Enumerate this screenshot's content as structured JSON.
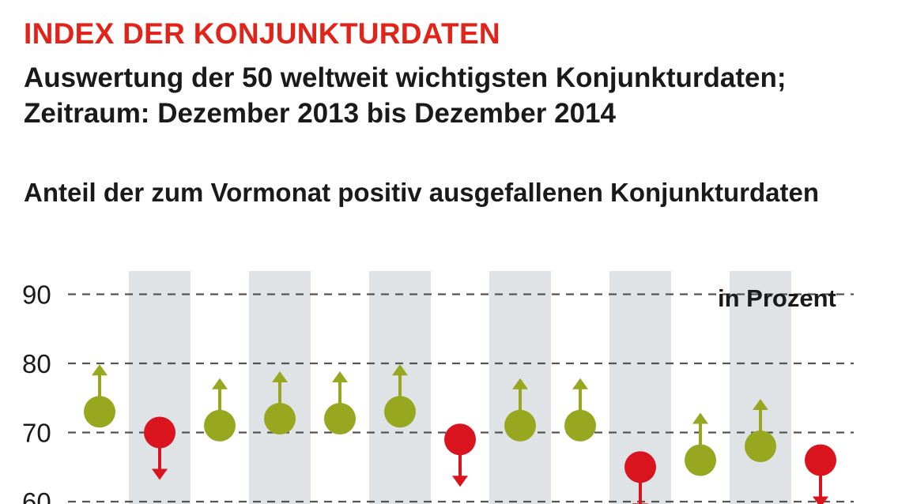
{
  "title": "INDEX DER KONJUNKTURDATEN",
  "subtitle_line1": "Auswertung der 50 weltweit wichtigsten Konjunkturdaten;",
  "subtitle_line2": "Zeitraum: Dezember 2013 bis Dezember 2014",
  "heading": "Anteil der zum Vormonat positiv ausgefallenen Konjunkturdaten",
  "unit": "in Prozent",
  "colors": {
    "up": "#97a71f",
    "down": "#d9141f",
    "band": "#dfe3e6",
    "grid": "#555555"
  },
  "chart_data": {
    "type": "scatter",
    "title": "Anteil der zum Vormonat positiv ausgefallenen Konjunkturdaten",
    "xlabel": "",
    "ylabel": "in Prozent",
    "ylim": [
      60,
      93
    ],
    "yticks": [
      60,
      70,
      80,
      90
    ],
    "grid": true,
    "series": [
      {
        "values": [
          73,
          70,
          71,
          72,
          72,
          73,
          69,
          71,
          71,
          65,
          66,
          68,
          66
        ],
        "direction": [
          "up",
          "down",
          "up",
          "up",
          "up",
          "up",
          "down",
          "up",
          "up",
          "down",
          "up",
          "up",
          "down"
        ]
      }
    ]
  }
}
